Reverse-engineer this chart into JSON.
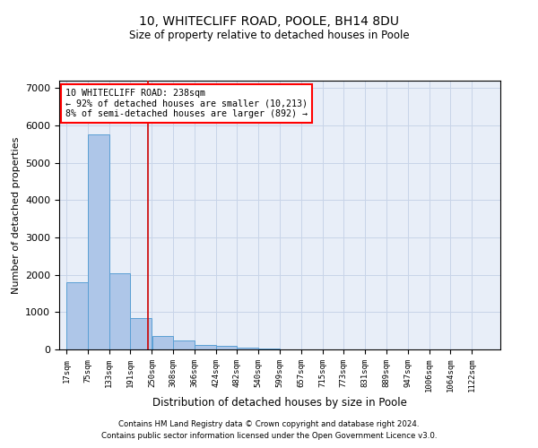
{
  "title": "10, WHITECLIFF ROAD, POOLE, BH14 8DU",
  "subtitle": "Size of property relative to detached houses in Poole",
  "xlabel": "Distribution of detached houses by size in Poole",
  "ylabel": "Number of detached properties",
  "bin_edges": [
    17,
    75,
    133,
    191,
    250,
    308,
    366,
    424,
    482,
    540,
    599,
    657,
    715,
    773,
    831,
    889,
    947,
    1006,
    1064,
    1122,
    1180
  ],
  "bar_heights": [
    1800,
    5750,
    2050,
    830,
    370,
    230,
    110,
    90,
    60,
    30,
    10,
    0,
    0,
    0,
    0,
    0,
    0,
    0,
    0,
    0
  ],
  "bar_color": "#aec6e8",
  "bar_edge_color": "#5a9fd4",
  "grid_color": "#c8d4e8",
  "background_color": "#e8eef8",
  "red_line_x": 238,
  "red_line_color": "#cc0000",
  "annotation_text_line1": "10 WHITECLIFF ROAD: 238sqm",
  "annotation_text_line2": "← 92% of detached houses are smaller (10,213)",
  "annotation_text_line3": "8% of semi-detached houses are larger (892) →",
  "ylim": [
    0,
    7200
  ],
  "yticks": [
    0,
    1000,
    2000,
    3000,
    4000,
    5000,
    6000,
    7000
  ],
  "footnote1": "Contains HM Land Registry data © Crown copyright and database right 2024.",
  "footnote2": "Contains public sector information licensed under the Open Government Licence v3.0."
}
